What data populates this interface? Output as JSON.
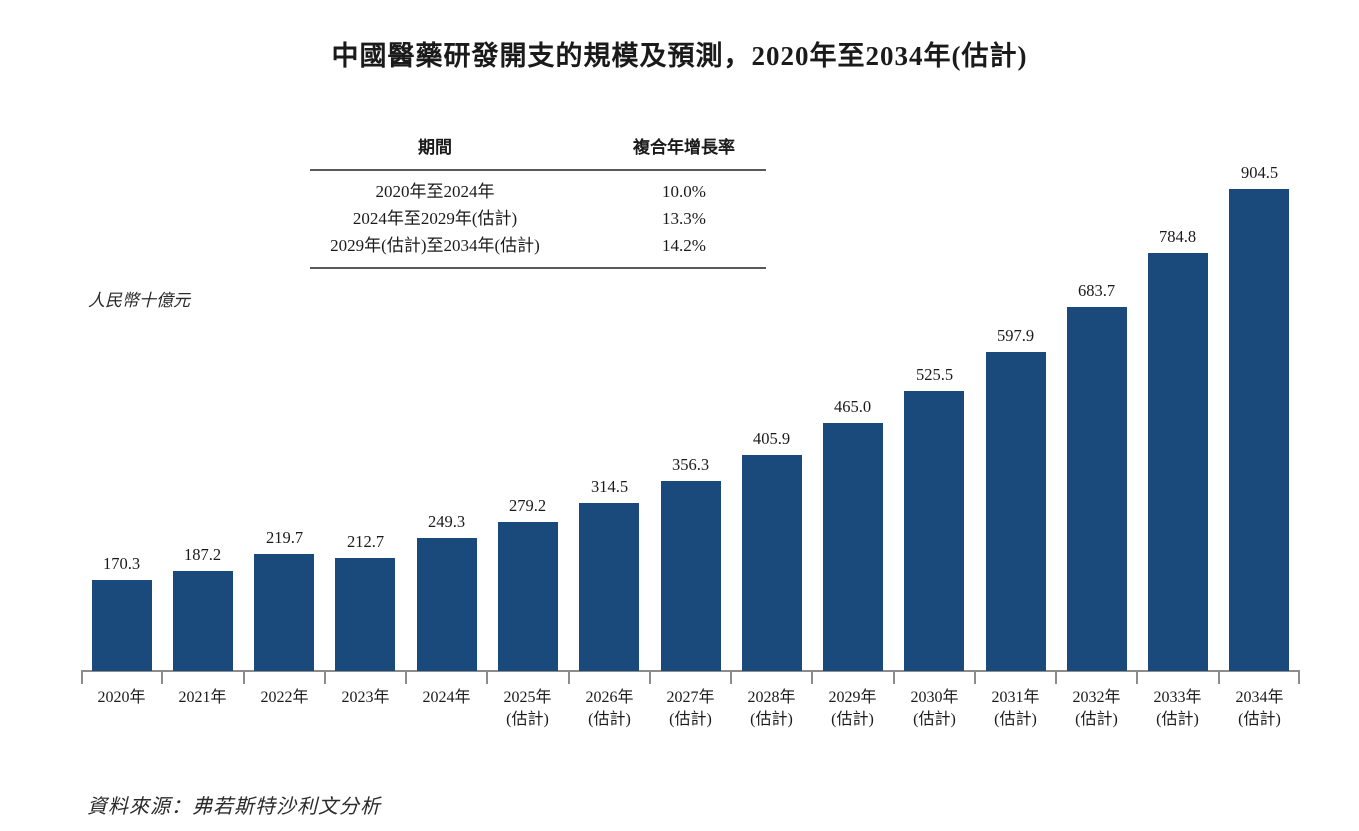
{
  "title": "中國醫藥研發開支的規模及預測，2020年至2034年(估計)",
  "cagr_table": {
    "headers": {
      "period": "期間",
      "cagr": "複合年增長率"
    },
    "rows": [
      {
        "period": "2020年至2024年",
        "cagr": "10.0%"
      },
      {
        "period": "2024年至2029年(估計)",
        "cagr": "13.3%"
      },
      {
        "period": "2029年(估計)至2034年(估計)",
        "cagr": "14.2%"
      }
    ]
  },
  "y_unit_label": "人民幣十億元",
  "source": "資料來源：弗若斯特沙利文分析",
  "chart_data": {
    "type": "bar",
    "title": "中國醫藥研發開支的規模及預測，2020年至2034年(估計)",
    "ylabel": "人民幣十億元",
    "xlabel": "",
    "ylim": [
      0,
      950
    ],
    "grid": false,
    "value_labels_shown": true,
    "categories": [
      {
        "year": "2020年",
        "note": ""
      },
      {
        "year": "2021年",
        "note": ""
      },
      {
        "year": "2022年",
        "note": ""
      },
      {
        "year": "2023年",
        "note": ""
      },
      {
        "year": "2024年",
        "note": ""
      },
      {
        "year": "2025年",
        "note": "(估計)"
      },
      {
        "year": "2026年",
        "note": "(估計)"
      },
      {
        "year": "2027年",
        "note": "(估計)"
      },
      {
        "year": "2028年",
        "note": "(估計)"
      },
      {
        "year": "2029年",
        "note": "(估計)"
      },
      {
        "year": "2030年",
        "note": "(估計)"
      },
      {
        "year": "2031年",
        "note": "(估計)"
      },
      {
        "year": "2032年",
        "note": "(估計)"
      },
      {
        "year": "2033年",
        "note": "(估計)"
      },
      {
        "year": "2034年",
        "note": "(估計)"
      }
    ],
    "values": [
      170.3,
      187.2,
      219.7,
      212.7,
      249.3,
      279.2,
      314.5,
      356.3,
      405.9,
      465.0,
      525.5,
      597.9,
      683.7,
      784.8,
      904.5
    ]
  },
  "colors": {
    "bar": "#1a4a7c",
    "axis": "#8c8c8c",
    "text": "#1a1a1a",
    "table_rule": "#595959"
  }
}
